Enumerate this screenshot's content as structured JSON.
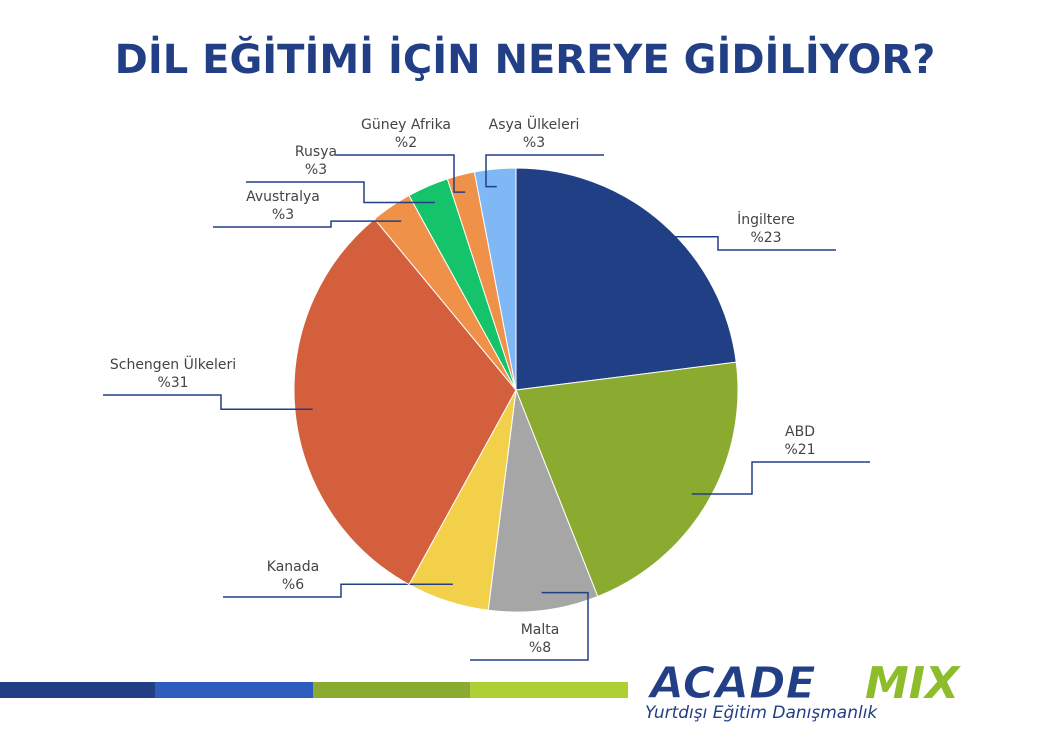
{
  "chart_data": {
    "type": "pie",
    "title": "DİL EĞİTİMİ İÇİN NEREYE GİDİLİYOR?",
    "categories": [
      "İngiltere",
      "ABD",
      "Malta",
      "Kanada",
      "Schengen Ülkeleri",
      "Avustralya",
      "Rusya",
      "Güney Afrika",
      "Asya Ülkeleri"
    ],
    "values": [
      23,
      21,
      8,
      6,
      31,
      3,
      3,
      2,
      3
    ],
    "value_labels": [
      "%23",
      "%21",
      "%8",
      "%6",
      "%31",
      "%3",
      "%3",
      "%2",
      "%3"
    ],
    "colors": [
      "#213f85",
      "#8aab30",
      "#a6a6a6",
      "#f2d04a",
      "#d45f3c",
      "#f0914a",
      "#15c36a",
      "#f0914a",
      "#7fb8f5"
    ]
  },
  "logo": {
    "name_part1": "ACADE",
    "name_part2": "MIX",
    "tagline": "Yurtdışı Eğitim Danışmanlık"
  }
}
